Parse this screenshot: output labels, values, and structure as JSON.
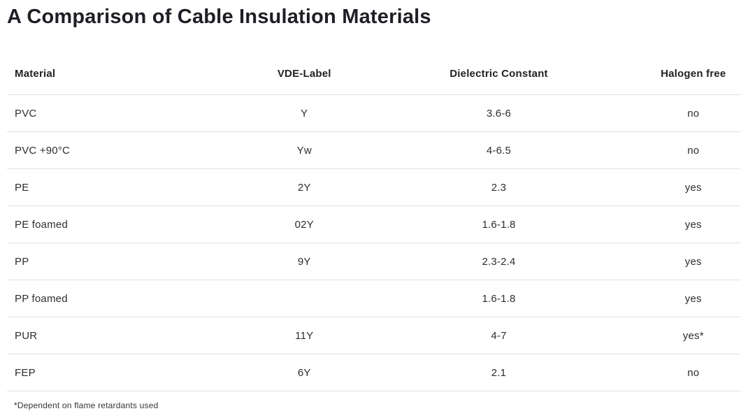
{
  "page": {
    "title": "A Comparison of Cable Insulation Materials",
    "footnote": "*Dependent on flame retardants used"
  },
  "table": {
    "headers": [
      "Material",
      "VDE-Label",
      "Dielectric Constant",
      "Halogen free"
    ],
    "rows": [
      {
        "material": "PVC",
        "vde_label": "Y",
        "dielectric_constant": "3.6-6",
        "halogen_free": "no"
      },
      {
        "material": "PVC +90°C",
        "vde_label": "Yw",
        "dielectric_constant": "4-6.5",
        "halogen_free": "no"
      },
      {
        "material": "PE",
        "vde_label": "2Y",
        "dielectric_constant": "2.3",
        "halogen_free": "yes"
      },
      {
        "material": "PE foamed",
        "vde_label": "02Y",
        "dielectric_constant": "1.6-1.8",
        "halogen_free": "yes"
      },
      {
        "material": "PP",
        "vde_label": "9Y",
        "dielectric_constant": "2.3-2.4",
        "halogen_free": "yes"
      },
      {
        "material": "PP foamed",
        "vde_label": "",
        "dielectric_constant": "1.6-1.8",
        "halogen_free": "yes"
      },
      {
        "material": "PUR",
        "vde_label": "11Y",
        "dielectric_constant": "4-7",
        "halogen_free": "yes*"
      },
      {
        "material": "FEP",
        "vde_label": "6Y",
        "dielectric_constant": "2.1",
        "halogen_free": "no"
      }
    ]
  },
  "chart_data": {
    "type": "table",
    "title": "A Comparison of Cable Insulation Materials",
    "columns": [
      "Material",
      "VDE-Label",
      "Dielectric Constant",
      "Halogen free"
    ],
    "rows": [
      [
        "PVC",
        "Y",
        "3.6-6",
        "no"
      ],
      [
        "PVC +90°C",
        "Yw",
        "4-6.5",
        "no"
      ],
      [
        "PE",
        "2Y",
        "2.3",
        "yes"
      ],
      [
        "PE foamed",
        "02Y",
        "1.6-1.8",
        "yes"
      ],
      [
        "PP",
        "9Y",
        "2.3-2.4",
        "yes"
      ],
      [
        "PP foamed",
        "",
        "1.6-1.8",
        "yes"
      ],
      [
        "PUR",
        "11Y",
        "4-7",
        "yes*"
      ],
      [
        "FEP",
        "6Y",
        "2.1",
        "no"
      ]
    ],
    "footnote": "*Dependent on flame retardants used"
  },
  "colors": {
    "background": "#ffffff",
    "title_text": "#1e1e24",
    "body_text": "#2e2e33",
    "divider": "#e2e2e2"
  }
}
